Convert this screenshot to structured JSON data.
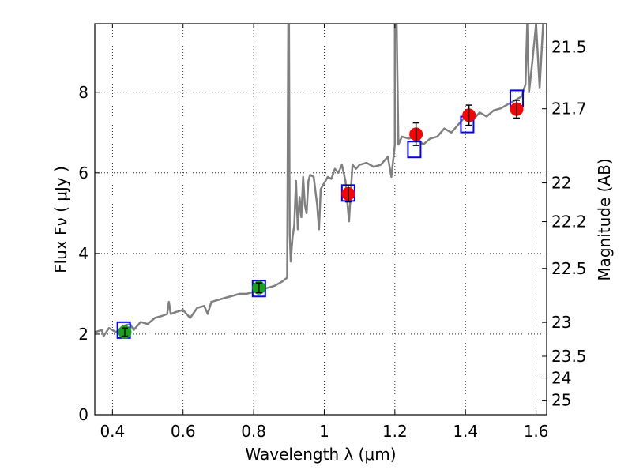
{
  "chart_data": {
    "type": "scatter",
    "xlabel": "Wavelength  λ (μm)",
    "ylabel": "Flux  Fν  ( μJy )",
    "y2label": "Magnitude (AB)",
    "xlim": [
      0.35,
      1.63
    ],
    "ylim": [
      0,
      9.7
    ],
    "grid": true,
    "x_ticks": [
      0.4,
      0.6,
      0.8,
      1.0,
      1.2,
      1.4,
      1.6
    ],
    "x_tick_labels": [
      "0.4",
      "0.6",
      "0.8",
      "1",
      "1.2",
      "1.4",
      "1.6"
    ],
    "y_ticks": [
      0,
      2,
      4,
      6,
      8
    ],
    "y_tick_labels": [
      "0",
      "2",
      "4",
      "6",
      "8"
    ],
    "y2_ticks": [
      {
        "label": "21.5",
        "flux": 9.12
      },
      {
        "label": "21.7",
        "flux": 7.59
      },
      {
        "label": "22",
        "flux": 5.75
      },
      {
        "label": "22.2",
        "flux": 4.79
      },
      {
        "label": "22.5",
        "flux": 3.63
      },
      {
        "label": "23",
        "flux": 2.29
      },
      {
        "label": "23.5",
        "flux": 1.45
      },
      {
        "label": "24",
        "flux": 0.91
      },
      {
        "label": "25",
        "flux": 0.36
      }
    ],
    "colors": {
      "spectrum": "#808080",
      "model_box": "#0000ff",
      "optical_points": "#1aa01a",
      "nir_points": "#ff0000",
      "errorbar": "#000000"
    },
    "series": [
      {
        "kind": "line",
        "color": "#808080",
        "x": [
          0.35,
          0.37,
          0.375,
          0.39,
          0.41,
          0.43,
          0.45,
          0.46,
          0.48,
          0.5,
          0.52,
          0.54,
          0.555,
          0.56,
          0.565,
          0.58,
          0.6,
          0.62,
          0.64,
          0.66,
          0.67,
          0.68,
          0.7,
          0.72,
          0.74,
          0.76,
          0.78,
          0.8,
          0.82,
          0.84,
          0.86,
          0.88,
          0.895,
          0.898,
          0.9,
          0.902,
          0.905,
          0.91,
          0.915,
          0.92,
          0.925,
          0.93,
          0.935,
          0.94,
          0.945,
          0.95,
          0.955,
          0.96,
          0.97,
          0.98,
          0.985,
          0.99,
          1.0,
          1.01,
          1.02,
          1.03,
          1.04,
          1.05,
          1.06,
          1.07,
          1.08,
          1.09,
          1.1,
          1.12,
          1.14,
          1.16,
          1.18,
          1.19,
          1.2,
          1.2,
          1.205,
          1.21,
          1.215,
          1.22,
          1.24,
          1.26,
          1.28,
          1.3,
          1.32,
          1.34,
          1.36,
          1.38,
          1.4,
          1.42,
          1.44,
          1.46,
          1.48,
          1.5,
          1.52,
          1.54,
          1.55,
          1.56,
          1.57,
          1.575,
          1.58,
          1.59,
          1.6,
          1.61,
          1.62
        ],
        "y": [
          2.05,
          2.1,
          1.95,
          2.15,
          2.05,
          2.2,
          2.25,
          2.1,
          2.3,
          2.25,
          2.4,
          2.45,
          2.5,
          2.8,
          2.5,
          2.55,
          2.6,
          2.4,
          2.65,
          2.7,
          2.5,
          2.8,
          2.85,
          2.9,
          2.95,
          3.0,
          3.0,
          3.05,
          3.1,
          3.15,
          3.2,
          3.3,
          3.4,
          9.7,
          9.7,
          4.5,
          3.8,
          4.4,
          4.7,
          5.8,
          4.6,
          5.4,
          4.9,
          5.9,
          5.2,
          5.0,
          5.8,
          5.95,
          5.9,
          5.2,
          4.6,
          5.6,
          5.75,
          5.9,
          5.85,
          6.1,
          6.0,
          6.2,
          5.8,
          4.8,
          6.2,
          6.1,
          6.2,
          6.25,
          6.15,
          6.2,
          6.4,
          5.9,
          6.7,
          9.7,
          9.7,
          6.7,
          6.8,
          6.9,
          6.85,
          6.9,
          6.7,
          6.85,
          6.9,
          7.1,
          7.0,
          7.2,
          7.4,
          7.3,
          7.5,
          7.4,
          7.55,
          7.6,
          7.7,
          7.8,
          7.85,
          7.9,
          8.2,
          9.7,
          8.0,
          8.8,
          9.7,
          8.1,
          9.7
        ]
      },
      {
        "kind": "model_boxes",
        "color": "#0000ff",
        "x": [
          0.432,
          0.815,
          1.068,
          1.255,
          1.405,
          1.545
        ],
        "y": [
          2.1,
          3.13,
          5.5,
          6.58,
          7.2,
          7.85
        ]
      },
      {
        "kind": "points",
        "color": "#1aa01a",
        "x": [
          0.435,
          0.815
        ],
        "y": [
          2.05,
          3.15
        ],
        "yerr": [
          0.1,
          0.12
        ]
      },
      {
        "kind": "points",
        "color": "#ff0000",
        "x": [
          1.068,
          1.26,
          1.41,
          1.545
        ],
        "y": [
          5.48,
          6.96,
          7.43,
          7.58
        ],
        "yerr": [
          0.2,
          0.28,
          0.25,
          0.22
        ]
      }
    ]
  }
}
